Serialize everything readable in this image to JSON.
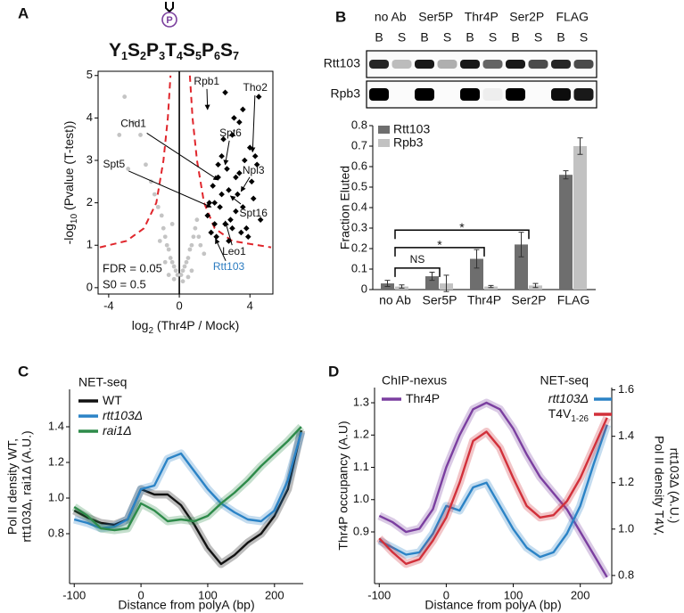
{
  "chart_data": [
    {
      "type": "scatter",
      "panel": "A",
      "epitope": "P",
      "sequence": [
        [
          "Y",
          "1"
        ],
        [
          "S",
          "2"
        ],
        [
          "P",
          "3"
        ],
        [
          "T",
          "4"
        ],
        [
          "S",
          "5"
        ],
        [
          "P",
          "6"
        ],
        [
          "S",
          "7"
        ]
      ],
      "xlabel": [
        "log",
        "2",
        " (Thr4P / Mock)"
      ],
      "ylabel": [
        "-log",
        "10",
        " (Pvalue (T-test))"
      ],
      "xlim": [
        -4.6,
        5.3
      ],
      "ylim": [
        -0.15,
        5.1
      ],
      "xticks": [
        -4,
        0,
        4
      ],
      "yticks": [
        0,
        1,
        2,
        3,
        4,
        5
      ],
      "vline": 0,
      "series": [
        {
          "color": "#c4c4c4",
          "marker": "circle",
          "x": [
            -3.1,
            -2.6,
            -2.2,
            -1.9,
            -1.6,
            -1.4,
            -1.2,
            -1.0,
            -0.9,
            -0.8,
            -0.7,
            -0.6,
            -0.5,
            -0.4,
            -0.3,
            -0.2,
            -0.1,
            0.1,
            0.2,
            0.3,
            0.4,
            0.5,
            0.6,
            0.7,
            0.8,
            0.9,
            1.0,
            1.1,
            1.2,
            -0.6,
            -0.3,
            0.2,
            0.5,
            -1.1,
            -0.8,
            1.4,
            -2.9,
            -3.4,
            -0.4,
            0.7
          ],
          "y": [
            4.5,
            3.9,
            3.6,
            2.9,
            2.5,
            2.2,
            1.9,
            1.7,
            1.4,
            1.2,
            1.0,
            0.9,
            0.7,
            0.6,
            0.5,
            0.4,
            0.3,
            0.3,
            0.4,
            0.5,
            0.6,
            0.7,
            0.9,
            1.0,
            1.2,
            1.4,
            1.6,
            1.2,
            1.0,
            0.3,
            0.2,
            0.15,
            0.25,
            1.1,
            0.6,
            0.8,
            2.8,
            3.6,
            1.5,
            0.4
          ]
        },
        {
          "color": "#000000",
          "marker": "diamond",
          "x": [
            1.8,
            2.0,
            2.2,
            2.4,
            2.6,
            2.8,
            3.0,
            3.2,
            3.4,
            3.6,
            3.8,
            4.0,
            4.2,
            4.4,
            1.6,
            1.9,
            2.1,
            2.3,
            2.5,
            2.7,
            2.9,
            3.1,
            3.3,
            3.5,
            3.7,
            4.1,
            4.5,
            2.0,
            2.4,
            2.8,
            3.2,
            3.6,
            1.7,
            2.2,
            2.6,
            3.0,
            3.4,
            3.9,
            4.3,
            4.6
          ],
          "y": [
            1.3,
            2.0,
            2.6,
            3.1,
            1.5,
            2.3,
            3.6,
            1.8,
            2.7,
            4.2,
            1.4,
            3.3,
            2.1,
            2.9,
            1.7,
            2.4,
            1.2,
            1.9,
            3.5,
            2.8,
            1.6,
            4.0,
            2.2,
            1.3,
            3.0,
            2.5,
            4.5,
            1.5,
            2.2,
            1.1,
            2.6,
            1.9,
            2.0,
            2.9,
            4.6,
            1.4,
            3.9,
            1.2,
            3.1,
            1.6
          ]
        }
      ],
      "curves": [
        {
          "color": "#e0262c",
          "style": "dashed",
          "x": [
            -4.5,
            -3.0,
            -2.0,
            -1.3,
            -0.9,
            -0.65,
            -0.5
          ],
          "y": [
            0.95,
            1.1,
            1.4,
            2.0,
            3.0,
            4.0,
            5.0
          ]
        },
        {
          "color": "#e0262c",
          "style": "dashed",
          "x": [
            0.6,
            0.75,
            1.0,
            1.4,
            2.0,
            3.0,
            5.2
          ],
          "y": [
            5.0,
            4.0,
            3.0,
            2.0,
            1.4,
            1.1,
            0.95
          ]
        }
      ],
      "annotations": [
        {
          "text": "Rpb1",
          "x": 1.6,
          "y": 4.2,
          "label_x": 1.55,
          "label_y": 4.85
        },
        {
          "text": "Tho2",
          "x": 4.15,
          "y": 3.2,
          "label_x": 4.3,
          "label_y": 4.7
        },
        {
          "text": "Spt6",
          "x": 2.6,
          "y": 2.9,
          "label_x": 2.9,
          "label_y": 3.63
        },
        {
          "text": "Chd1",
          "x": 2.2,
          "y": 2.54,
          "label_x": -2.6,
          "label_y": 3.85
        },
        {
          "text": "Npl3",
          "x": 3.5,
          "y": 2.27,
          "label_x": 4.2,
          "label_y": 2.75
        },
        {
          "text": "Spt5",
          "x": 1.8,
          "y": 1.9,
          "label_x": -3.7,
          "label_y": 2.9
        },
        {
          "text": "Spt16",
          "x": 2.9,
          "y": 2.16,
          "label_x": 4.2,
          "label_y": 1.74
        },
        {
          "text": "Leo1",
          "x": 2.6,
          "y": 1.57,
          "label_x": 3.1,
          "label_y": 0.84
        },
        {
          "text": "Rtt103",
          "x": 2.05,
          "y": 1.15,
          "label_x": 2.8,
          "label_y": 0.48,
          "color": "#2b7bc0"
        }
      ],
      "notes": [
        "FDR = 0.05",
        "S0 = 0.5"
      ]
    },
    {
      "type": "bar",
      "panel": "B",
      "blot": {
        "groups": [
          "no Ab",
          "Ser5P",
          "Thr4P",
          "Ser2P",
          "FLAG"
        ],
        "lanes": [
          "B",
          "S",
          "B",
          "S",
          "B",
          "S",
          "B",
          "S",
          "B",
          "S"
        ],
        "rows": [
          "Rtt103",
          "Rpb3"
        ],
        "bands": [
          [
            0.85,
            0.25,
            0.9,
            0.3,
            0.9,
            0.6,
            0.9,
            0.7,
            0.85,
            0.7
          ],
          [
            1,
            0,
            1,
            0,
            1,
            0.05,
            1,
            0,
            0.95,
            0.9
          ]
        ]
      },
      "categories": [
        "no Ab",
        "Ser5P",
        "Thr4P",
        "Ser2P",
        "FLAG"
      ],
      "series": [
        {
          "name": "Rtt103",
          "color": "#6e6e6e",
          "values": [
            0.03,
            0.065,
            0.15,
            0.22,
            0.56
          ],
          "errors": [
            0.015,
            0.02,
            0.045,
            0.06,
            0.02
          ]
        },
        {
          "name": "Rpb3",
          "color": "#c2c2c2",
          "values": [
            0.015,
            0.03,
            0.015,
            0.02,
            0.7
          ],
          "errors": [
            0.008,
            0.04,
            0.005,
            0.01,
            0.04
          ]
        }
      ],
      "ylabel": "Fraction Eluted",
      "ylim": [
        0,
        0.8
      ],
      "yticks": [
        0,
        0.1,
        0.2,
        0.3,
        0.4,
        0.5,
        0.6,
        0.7,
        0.8
      ],
      "brackets": [
        {
          "from": 0,
          "to": 1,
          "y": 0.105,
          "label": "NS"
        },
        {
          "from": 0,
          "to": 2,
          "y": 0.205,
          "label": "*"
        },
        {
          "from": 0,
          "to": 3,
          "y": 0.29,
          "label": "*"
        }
      ]
    },
    {
      "type": "line",
      "panel": "C",
      "x": [
        -100,
        -80,
        -60,
        -40,
        -20,
        0,
        20,
        40,
        60,
        80,
        100,
        120,
        140,
        160,
        180,
        200,
        220,
        240
      ],
      "xlim": [
        -107,
        243
      ],
      "xticks": [
        -100,
        0,
        100,
        200
      ],
      "ylim": [
        0.52,
        1.61
      ],
      "yticks": [
        0.8,
        {
          "value": 1,
          "label": "1.0"
        },
        1.2,
        1.4
      ],
      "xlabel": "Distance from polyA (bp)",
      "ylabel": [
        "Pol II density WT,",
        "rtt103Δ, rai1Δ (A.U.)"
      ],
      "legend_groups": [
        {
          "title": "NET-seq",
          "series": [
            0,
            1,
            2
          ]
        }
      ],
      "series": [
        {
          "name": "WT",
          "color": "#111111",
          "values": [
            0.93,
            0.89,
            0.86,
            0.85,
            0.88,
            1.05,
            1.02,
            1.02,
            0.96,
            0.85,
            0.72,
            0.63,
            0.68,
            0.75,
            0.8,
            0.9,
            1.05,
            1.38
          ]
        },
        {
          "name": "rtt103Δ",
          "italic": true,
          "color": "#2b83c6",
          "values": [
            0.88,
            0.86,
            0.83,
            0.84,
            0.88,
            1.05,
            1.07,
            1.22,
            1.25,
            1.15,
            1.05,
            0.97,
            0.92,
            0.88,
            0.87,
            0.93,
            1.1,
            1.37
          ]
        },
        {
          "name": "rai1Δ",
          "italic": true,
          "color": "#2e8b4a",
          "values": [
            0.95,
            0.9,
            0.83,
            0.82,
            0.83,
            0.97,
            0.93,
            0.87,
            0.88,
            0.87,
            0.9,
            0.97,
            1.03,
            1.1,
            1.18,
            1.25,
            1.32,
            1.4
          ]
        }
      ]
    },
    {
      "type": "line",
      "panel": "D",
      "x": [
        -100,
        -80,
        -60,
        -40,
        -20,
        0,
        20,
        40,
        60,
        80,
        100,
        120,
        140,
        160,
        180,
        200,
        220,
        240
      ],
      "xlim": [
        -107,
        247
      ],
      "xticks": [
        -100,
        0,
        100,
        200
      ],
      "ylim": [
        0.74,
        1.347
      ],
      "yticks": [
        0.9,
        {
          "value": 1,
          "label": "1.0"
        },
        1.1,
        1.2,
        1.3
      ],
      "y2lim": [
        0.765,
        1.61
      ],
      "y2ticks": [
        0.8,
        {
          "value": 1,
          "label": "1.0"
        },
        1.2,
        1.4,
        1.6
      ],
      "xlabel": "Distance from polyA (bp)",
      "ylabel": [
        "Thr4P occupancy (A.U)"
      ],
      "y2label": [
        "Pol II density T4V,",
        "rtt103Δ (A.U.)"
      ],
      "legend_groups": [
        {
          "title": "ChIP-nexus",
          "series": [
            0
          ]
        },
        {
          "title": "NET-seq",
          "series": [
            1,
            2
          ]
        }
      ],
      "series": [
        {
          "name": "Thr4P",
          "color": "#7b3fa0",
          "values": [
            0.95,
            0.93,
            0.9,
            0.91,
            0.97,
            1.1,
            1.2,
            1.28,
            1.3,
            1.28,
            1.22,
            1.14,
            1.07,
            1.02,
            0.97,
            0.9,
            0.83,
            0.76
          ]
        },
        {
          "name": "rtt103Δ",
          "italic": true,
          "axis": "y2",
          "color": "#2b83c6",
          "values": [
            0.95,
            0.92,
            0.89,
            0.9,
            0.98,
            1.1,
            1.08,
            1.18,
            1.2,
            1.1,
            1.0,
            0.92,
            0.88,
            0.9,
            0.98,
            1.1,
            1.28,
            1.45
          ]
        },
        {
          "name": "T4V",
          "name_sub": "1-26",
          "axis": "y2",
          "color": "#d2303a",
          "values": [
            0.96,
            0.9,
            0.85,
            0.87,
            0.95,
            1.05,
            1.2,
            1.38,
            1.42,
            1.35,
            1.22,
            1.1,
            1.05,
            1.06,
            1.12,
            1.22,
            1.35,
            1.48
          ]
        }
      ]
    }
  ]
}
